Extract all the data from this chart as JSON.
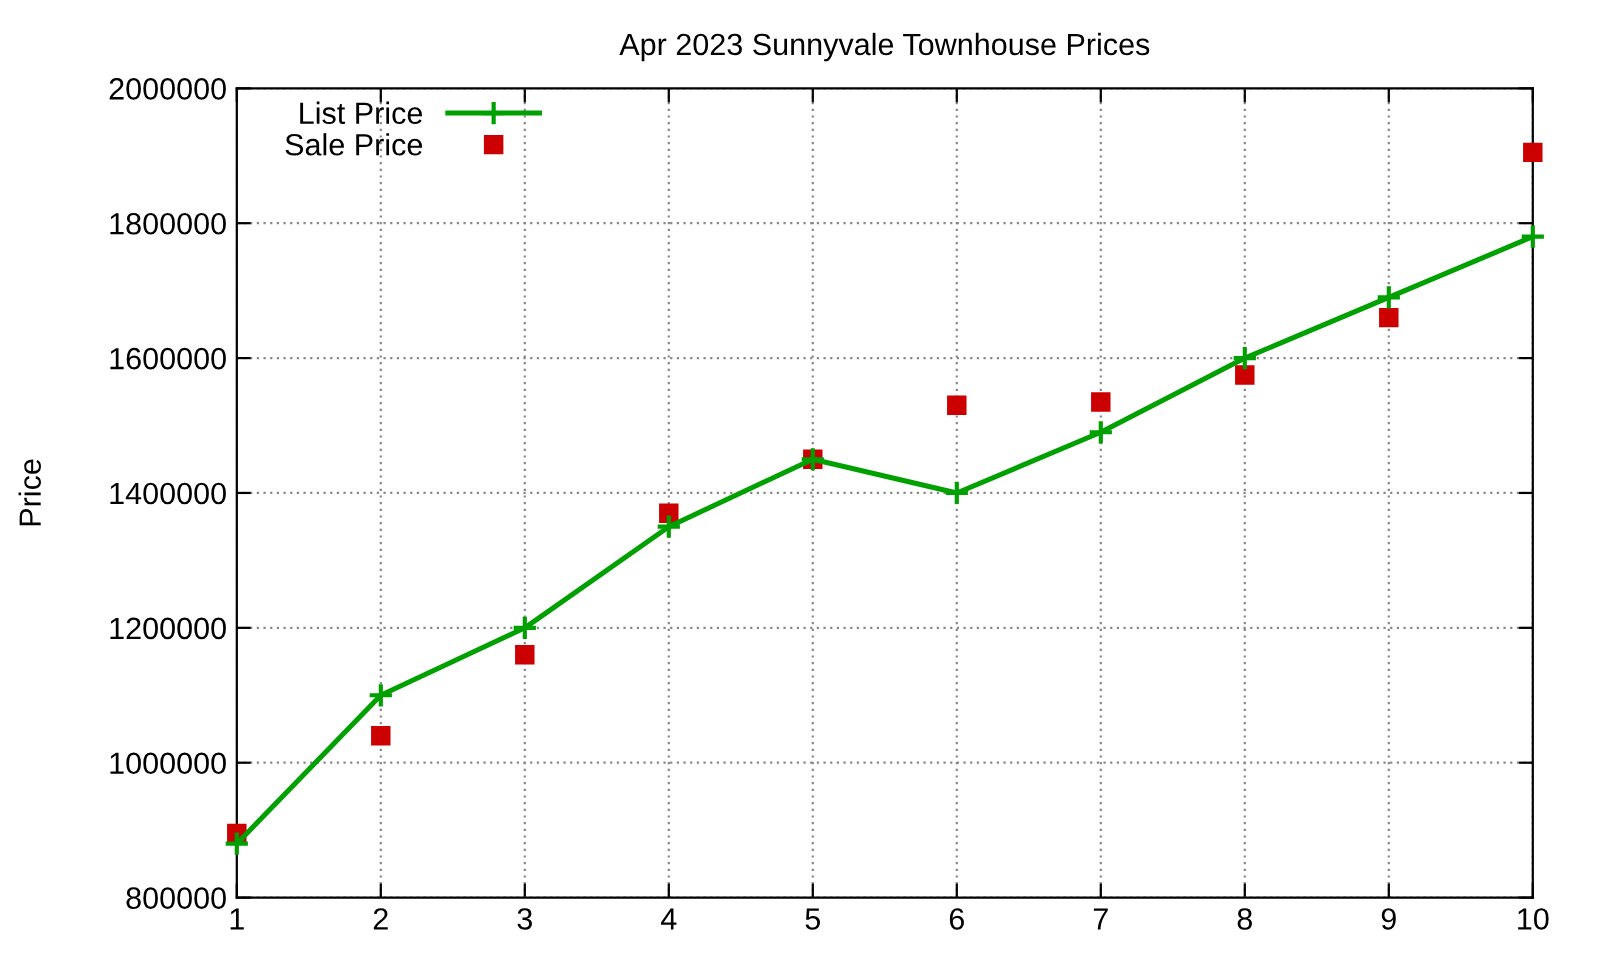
{
  "chart_data": {
    "type": "line",
    "title": "Apr 2023 Sunnyvale Townhouse Prices",
    "ylabel": "Price",
    "x": [
      1,
      2,
      3,
      4,
      5,
      6,
      7,
      8,
      9,
      10
    ],
    "series": [
      {
        "name": "List Price",
        "color": "#00a000",
        "marker": "cross",
        "values": [
          880000,
          1100000,
          1200000,
          1350000,
          1450000,
          1400000,
          1490000,
          1600000,
          1690000,
          1780000
        ]
      },
      {
        "name": "Sale Price",
        "type": "scatter",
        "color": "#cc0000",
        "marker": "square",
        "values": [
          895000,
          1040000,
          1160000,
          1370000,
          1450000,
          1530000,
          1535000,
          1575000,
          1660000,
          1905000
        ]
      }
    ],
    "xlim": [
      1,
      10
    ],
    "xticks": [
      1,
      2,
      3,
      4,
      5,
      6,
      7,
      8,
      9,
      10
    ],
    "ylim": [
      800000,
      2000000
    ],
    "yticks": [
      800000,
      1000000,
      1200000,
      1400000,
      1600000,
      1800000,
      2000000
    ],
    "grid": true,
    "legend": "top left"
  }
}
